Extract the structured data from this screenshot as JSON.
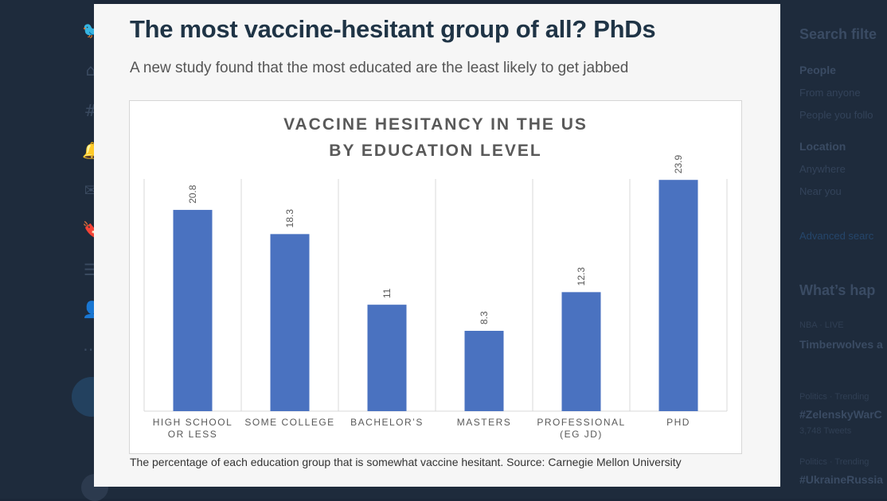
{
  "article": {
    "headline": "The most vaccine-hesitant group of all? PhDs",
    "subhead": "A new study found that the most educated are the least likely to get jabbed",
    "caption": "The percentage of each education group that is somewhat vaccine hesitant. Source: Carnegie Mellon University"
  },
  "sidebar": {
    "search_filters": "Search filte",
    "people": "People",
    "from_anyone": "From anyone",
    "people_you_follow": "People you follo",
    "location": "Location",
    "anywhere": "Anywhere",
    "near_you": "Near you",
    "advanced_search": "Advanced searc",
    "whats_happening": "What’s hap",
    "trend1_meta": "NBA · LIVE",
    "trend1_title": "Timberwolves a",
    "trend2_meta": "Politics · Trending",
    "trend2_title": "#ZelenskyWarC",
    "trend2_count": "3,748 Tweets",
    "trend3_meta": "Politics · Trending",
    "trend3_title": "#UkraineRussia"
  },
  "colors": {
    "bar": "#4a72c0",
    "headline": "#1f3446",
    "background": "#1b2738"
  },
  "chart_data": {
    "type": "bar",
    "title_lines": [
      "VACCINE HESITANCY IN THE US",
      "BY EDUCATION LEVEL"
    ],
    "categories": [
      [
        "HIGH SCHOOL",
        "OR LESS"
      ],
      [
        "SOME COLLEGE"
      ],
      [
        "BACHELOR’S"
      ],
      [
        "MASTERS"
      ],
      [
        "PROFESSIONAL",
        "(EG JD)"
      ],
      [
        "PHD"
      ]
    ],
    "values": [
      20.8,
      18.3,
      11,
      8.3,
      12.3,
      23.9
    ],
    "value_labels": [
      "20.8",
      "18.3",
      "11",
      "8.3",
      "12.3",
      "23.9"
    ],
    "ylim": [
      0,
      24
    ],
    "xlabel": "",
    "ylabel": "",
    "grid": false,
    "legend": "none"
  }
}
